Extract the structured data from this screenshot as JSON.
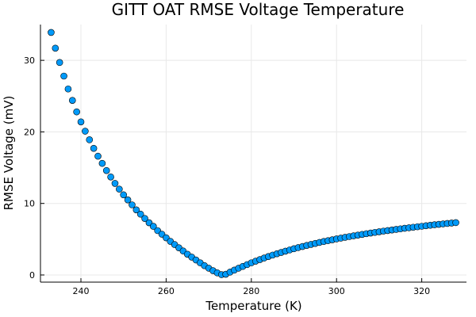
{
  "chart_data": {
    "type": "scatter",
    "title": "GITT OAT RMSE Voltage Temperature",
    "xlabel": "Temperature (K)",
    "ylabel": "RMSE Voltage (mV)",
    "xlim": [
      230.5,
      330.5
    ],
    "ylim": [
      -1.0,
      35.0
    ],
    "xticks": [
      240,
      260,
      280,
      300,
      320
    ],
    "yticks": [
      0,
      10,
      20,
      30
    ],
    "grid": true,
    "legend": "none",
    "marker_color": "#009af9",
    "series": [
      {
        "x": [
          233,
          234,
          235,
          236,
          237,
          238,
          239,
          240,
          241,
          242,
          243,
          244,
          245,
          246,
          247,
          248,
          249,
          250,
          251,
          252,
          253,
          254,
          255,
          256,
          257,
          258,
          259,
          260,
          261,
          262,
          263,
          264,
          265,
          266,
          267,
          268,
          269,
          270,
          271,
          272,
          273,
          274,
          275,
          276,
          277,
          278,
          279,
          280,
          281,
          282,
          283,
          284,
          285,
          286,
          287,
          288,
          289,
          290,
          291,
          292,
          293,
          294,
          295,
          296,
          297,
          298,
          299,
          300,
          301,
          302,
          303,
          304,
          305,
          306,
          307,
          308,
          309,
          310,
          311,
          312,
          313,
          314,
          315,
          316,
          317,
          318,
          319,
          320,
          321,
          322,
          323,
          324,
          325,
          326,
          327,
          328
        ],
        "y": [
          33.9,
          31.7,
          29.7,
          27.8,
          26.0,
          24.4,
          22.8,
          21.4,
          20.1,
          18.9,
          17.7,
          16.6,
          15.6,
          14.6,
          13.7,
          12.8,
          12.0,
          11.2,
          10.5,
          9.8,
          9.1,
          8.5,
          7.9,
          7.3,
          6.8,
          6.2,
          5.7,
          5.2,
          4.7,
          4.25,
          3.8,
          3.35,
          2.9,
          2.5,
          2.1,
          1.7,
          1.3,
          0.95,
          0.6,
          0.3,
          0.05,
          0.1,
          0.4,
          0.68,
          0.95,
          1.2,
          1.45,
          1.7,
          1.93,
          2.15,
          2.37,
          2.58,
          2.78,
          2.97,
          3.15,
          3.33,
          3.5,
          3.67,
          3.83,
          3.98,
          4.13,
          4.27,
          4.41,
          4.55,
          4.68,
          4.8,
          4.92,
          5.04,
          5.15,
          5.26,
          5.37,
          5.47,
          5.57,
          5.67,
          5.77,
          5.86,
          5.95,
          6.04,
          6.13,
          6.21,
          6.29,
          6.37,
          6.45,
          6.53,
          6.6,
          6.67,
          6.74,
          6.81,
          6.88,
          6.95,
          7.02,
          7.08,
          7.14,
          7.2,
          7.26,
          7.32
        ]
      }
    ]
  }
}
